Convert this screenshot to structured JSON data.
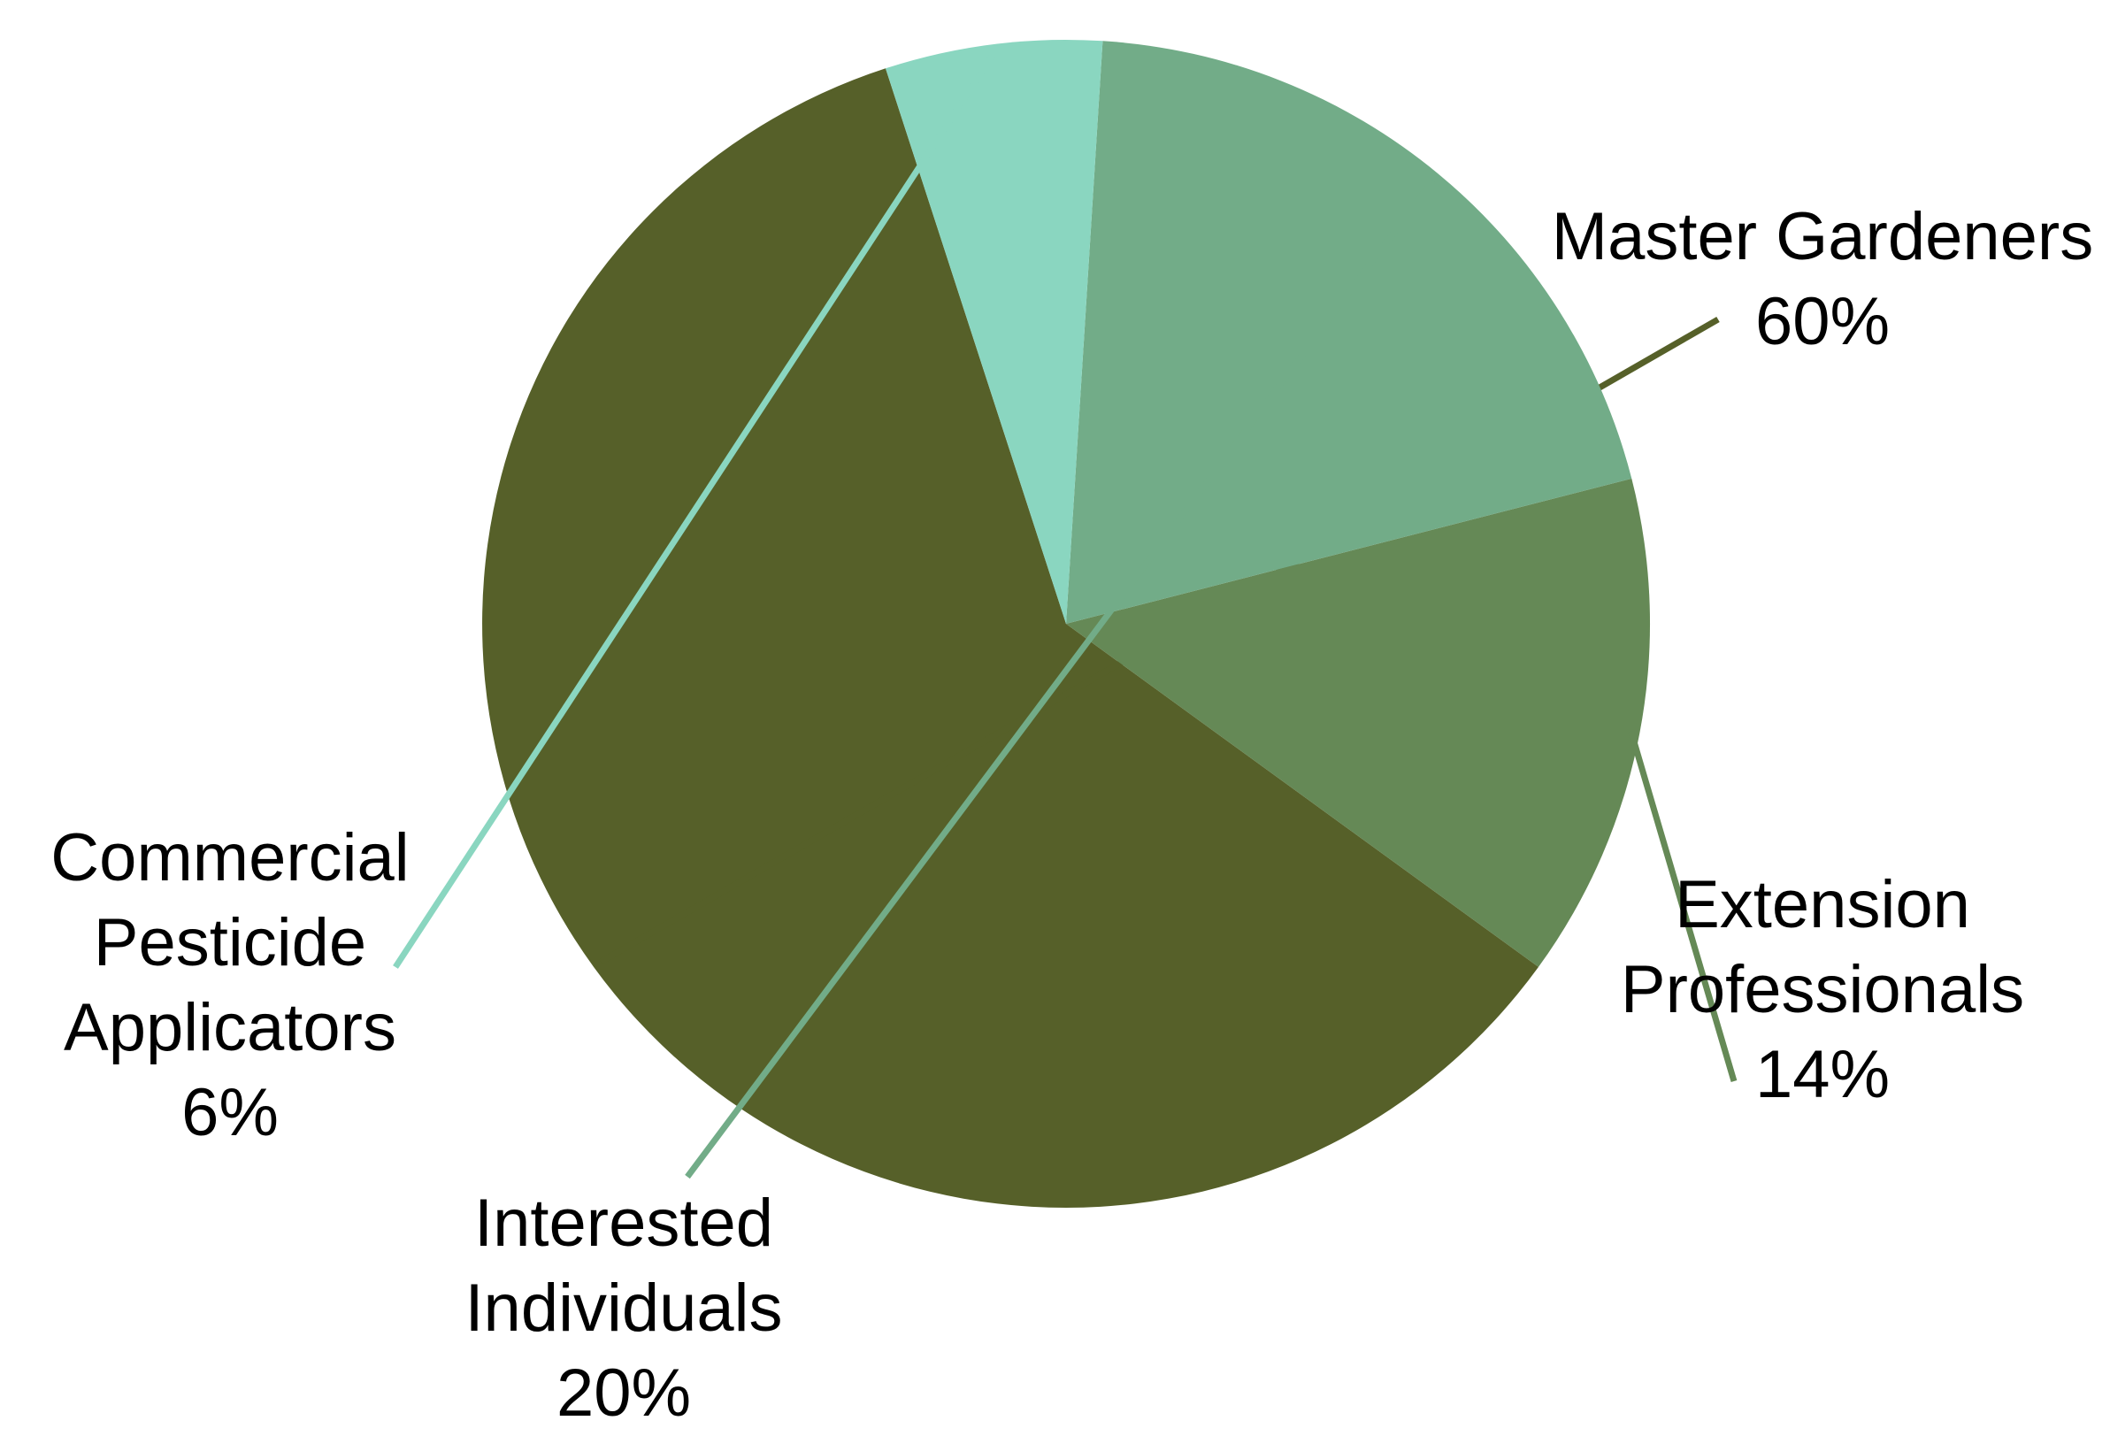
{
  "chart_data": {
    "type": "pie",
    "title": "",
    "slices": [
      {
        "label": "Master Gardeners",
        "label_lines": [
          "Master Gardeners"
        ],
        "value_label": "60%",
        "value": 60,
        "color": "#566029"
      },
      {
        "label": "Extension Professionals",
        "label_lines": [
          "Extension",
          "Professionals"
        ],
        "value_label": "14%",
        "value": 14,
        "color": "#658956"
      },
      {
        "label": "Interested Individuals",
        "label_lines": [
          "Interested",
          "Individuals"
        ],
        "value_label": "20%",
        "value": 20,
        "color": "#72ac88"
      },
      {
        "label": "Commercial Pesticide Applicators",
        "label_lines": [
          "Commercial",
          "Pesticide",
          "Applicators"
        ],
        "value_label": "6%",
        "value": 6,
        "color": "#8ad6c0"
      }
    ],
    "legend": "none"
  }
}
